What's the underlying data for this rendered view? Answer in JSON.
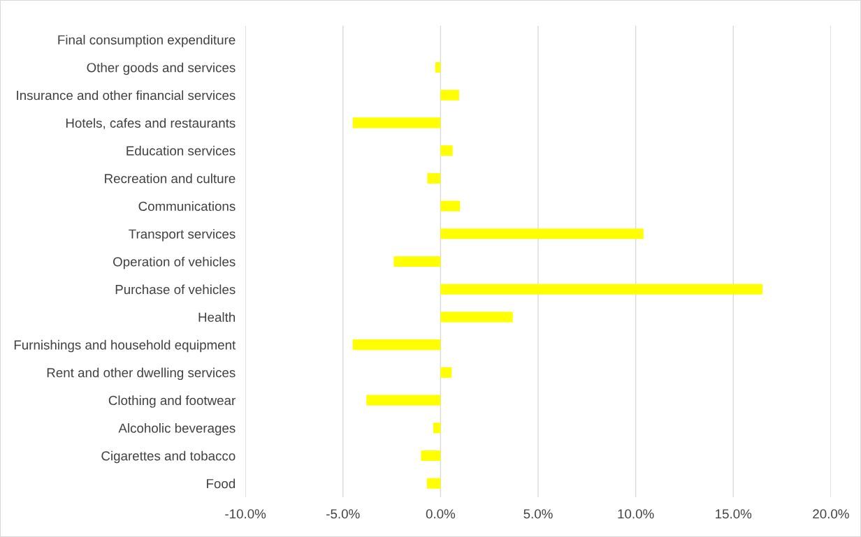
{
  "chart_data": {
    "type": "bar",
    "orientation": "horizontal",
    "categories": [
      "Final consumption expenditure",
      "Other goods and services",
      "Insurance and other financial services",
      "Hotels, cafes and restaurants",
      "Education services",
      "Recreation and culture",
      "Communications",
      "Transport services",
      "Operation of vehicles",
      "Purchase of vehicles",
      "Health",
      "Furnishings and household equipment",
      "Rent and other dwelling services",
      "Clothing and footwear",
      "Alcoholic beverages",
      "Cigarettes and tobacco",
      "Food"
    ],
    "values": [
      0,
      -0.27,
      0.95,
      -4.5,
      0.62,
      -0.68,
      1.0,
      10.4,
      -2.4,
      16.5,
      3.7,
      -4.5,
      0.57,
      -3.8,
      -0.38,
      -1.0,
      -0.7
    ],
    "color": "#ffff00",
    "xlim": [
      -10,
      20
    ],
    "xticks": [
      {
        "value": -10,
        "label": "-10.0%"
      },
      {
        "value": -5,
        "label": "-5.0%"
      },
      {
        "value": 0,
        "label": "0.0%"
      },
      {
        "value": 5,
        "label": "5.0%"
      },
      {
        "value": 10,
        "label": "10.0%"
      },
      {
        "value": 15,
        "label": "15.0%"
      },
      {
        "value": 20,
        "label": "20.0%"
      }
    ],
    "grid": "x",
    "legend": false
  }
}
